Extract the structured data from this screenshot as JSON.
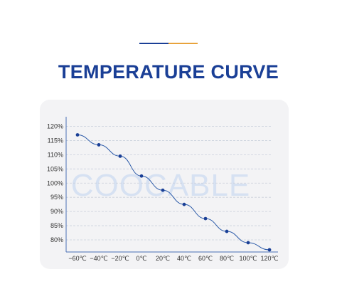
{
  "header": {
    "title": "TEMPERATURE CURVE",
    "accent_colors": [
      "#1a3f96",
      "#e8a33c"
    ]
  },
  "watermark": "COOCABLE",
  "colors": {
    "title": "#1a3f96",
    "line": "#2b5aa8",
    "point": "#1a3f96",
    "axis": "#4a6fb5",
    "grid": "#c9cfdb",
    "watermark": "#d6e1f2",
    "card": "#f3f3f5"
  },
  "chart_data": {
    "type": "line",
    "x": [
      "−60℃",
      "−40℃",
      "−20℃",
      "0℃",
      "20℃",
      "40℃",
      "60℃",
      "80℃",
      "100℃",
      "120℃"
    ],
    "series": [
      {
        "values": [
          117,
          113.5,
          109.5,
          102.5,
          97.5,
          92.5,
          87.5,
          83,
          79,
          76.5
        ]
      }
    ],
    "yticks": [
      120,
      115,
      110,
      105,
      100,
      95,
      90,
      85,
      80
    ],
    "ytick_labels": [
      "120%",
      "115%",
      "110%",
      "105%",
      "100%",
      "95%",
      "90%",
      "85%",
      "80%"
    ],
    "ylim": [
      76.5,
      122
    ],
    "grid": true,
    "grid_style": "dashed horizontal",
    "title": "",
    "xlabel": "",
    "ylabel": ""
  }
}
